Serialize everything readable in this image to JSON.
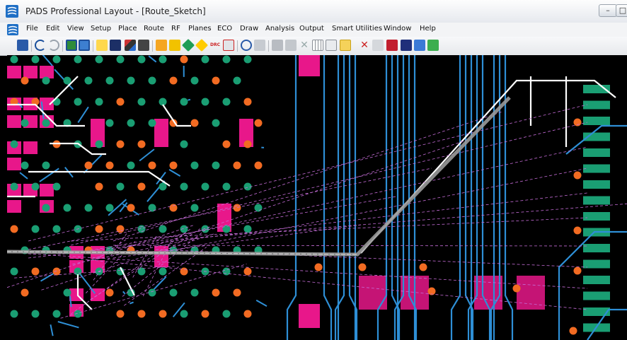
{
  "window": {
    "title": "PADS Professional Layout - [Route_Sketch]",
    "minimize_label": "–",
    "maximize_label": "□"
  },
  "menu": {
    "items": [
      "File",
      "Edit",
      "View",
      "Setup",
      "Place",
      "Route",
      "RF",
      "Planes",
      "ECO",
      "Draw",
      "Analysis",
      "Output",
      "Smart Utilities",
      "Window",
      "Help"
    ]
  },
  "toolbar": {
    "icons": [
      "save-icon",
      "undo-icon",
      "redo-icon",
      "fit-board-icon",
      "zoom-extents-icon",
      "select-icon",
      "display-control-icon",
      "route-icon",
      "sketch-route-icon",
      "place-part-icon",
      "move-part-icon",
      "add-via-icon",
      "drc-warning-icon",
      "drc-icon",
      "design-rule-icon",
      "zoom-icon",
      "pan-icon",
      "lock-icon",
      "unlock-icon",
      "delete-icon",
      "grid-icon",
      "snap-icon",
      "plow-icon",
      "unroute-icon",
      "fanout-icon",
      "highlight-icon",
      "cross-probe-icon",
      "report-icon",
      "refresh-icon"
    ],
    "drc_label": "DRC"
  },
  "colors": {
    "background": "#000000",
    "trace": "#2e8fd6",
    "via_green": "#1a9e73",
    "via_orange": "#f26b22",
    "pad_magenta": "#e8178a",
    "ratsnest": "#c46cd6",
    "route_white": "#ffffff",
    "sketch_gray": "#9a9a9a",
    "connector_green": "#1a9e73"
  }
}
